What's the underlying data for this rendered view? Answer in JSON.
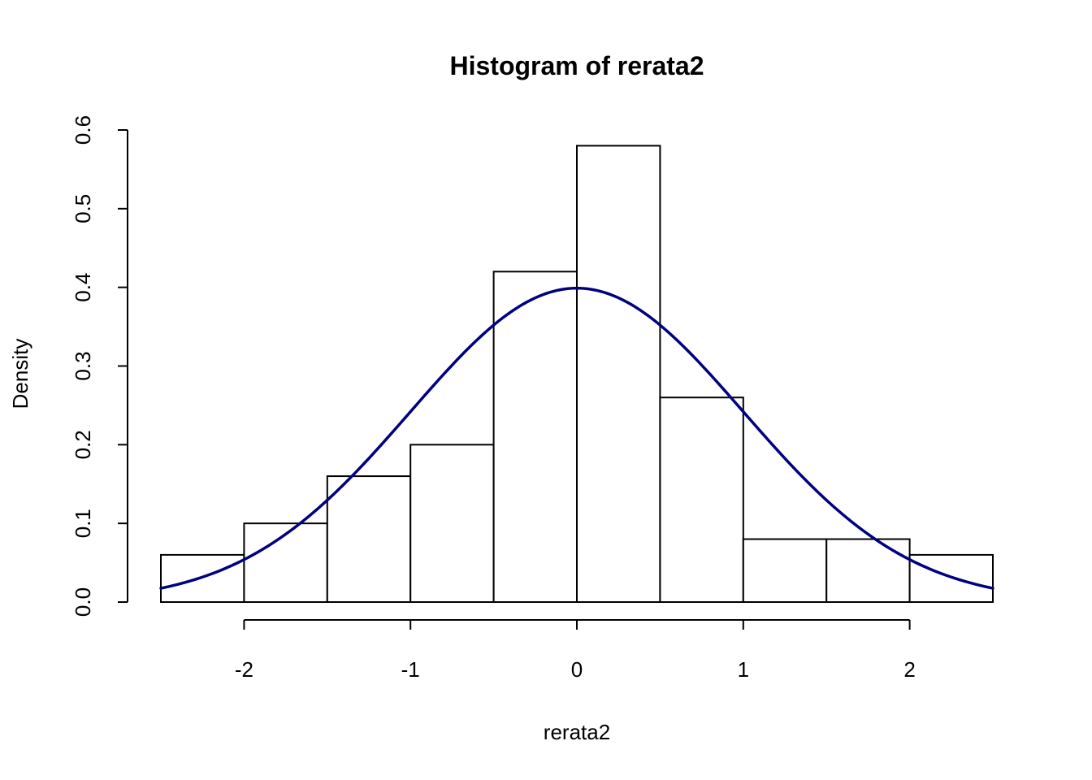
{
  "chart_data": {
    "type": "bar",
    "title": "Histogram of rerata2",
    "xlabel": "rerata2",
    "ylabel": "Density",
    "bins": [
      {
        "from": -2.5,
        "to": -2.0,
        "density": 0.06
      },
      {
        "from": -2.0,
        "to": -1.5,
        "density": 0.1
      },
      {
        "from": -1.5,
        "to": -1.0,
        "density": 0.16
      },
      {
        "from": -1.0,
        "to": -0.5,
        "density": 0.2
      },
      {
        "from": -0.5,
        "to": 0.0,
        "density": 0.42
      },
      {
        "from": 0.0,
        "to": 0.5,
        "density": 0.58
      },
      {
        "from": 0.5,
        "to": 1.0,
        "density": 0.26
      },
      {
        "from": 1.0,
        "to": 1.5,
        "density": 0.08
      },
      {
        "from": 1.5,
        "to": 2.0,
        "density": 0.08
      },
      {
        "from": 2.0,
        "to": 2.5,
        "density": 0.06
      }
    ],
    "density_curve": {
      "type": "line",
      "function": "dnorm",
      "mean": 0,
      "sd": 1,
      "x_range": [
        -2.5,
        2.5
      ],
      "color": "#000080"
    },
    "xlim": [
      -2.5,
      2.5
    ],
    "ylim": [
      0,
      0.6
    ],
    "x_ticks": [
      -2,
      -1,
      0,
      1,
      2
    ],
    "x_tick_labels": [
      "-2",
      "-1",
      "0",
      "1",
      "2"
    ],
    "y_ticks": [
      0,
      0.1,
      0.2,
      0.3,
      0.4,
      0.5,
      0.6
    ],
    "y_tick_labels": [
      "0.0",
      "0.1",
      "0.2",
      "0.3",
      "0.4",
      "0.5",
      "0.6"
    ],
    "grid": false,
    "legend": "none"
  }
}
